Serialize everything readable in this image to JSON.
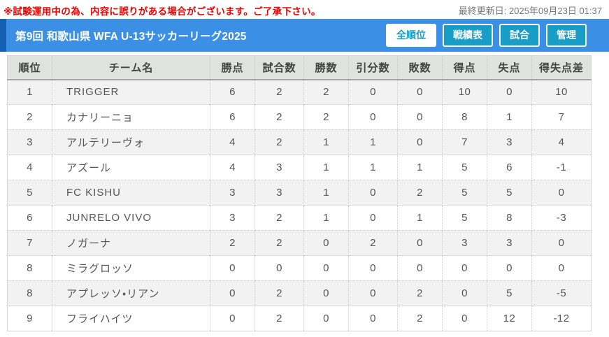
{
  "notice": "※試験運用中の為、内容に誤りがある場合がございます。ご了承下さい。",
  "last_updated": "最終更新日: 2025年09月23日 01:37",
  "header": {
    "title": "第9回 和歌山県 WFA U-13サッカーリーグ2025",
    "buttons": [
      {
        "label": "全順位",
        "active": true
      },
      {
        "label": "戦績表",
        "active": false
      },
      {
        "label": "試合",
        "active": false
      },
      {
        "label": "管理",
        "active": false
      }
    ]
  },
  "colors": {
    "header_bar": "#3b90e6",
    "header_bar_accent": "#1461b4",
    "button_teal": "#189dc7",
    "notice_red": "#ee0000",
    "table_header_bg": "#dee3de",
    "row_alt_bg": "#f2f2f2"
  },
  "standings": {
    "columns": [
      "順位",
      "チーム名",
      "勝点",
      "試合数",
      "勝数",
      "引分数",
      "敗数",
      "得点",
      "失点",
      "得失点差"
    ],
    "rows": [
      {
        "rank": "1",
        "team": "TRIGGER",
        "points": "6",
        "games": "2",
        "wins": "2",
        "draws": "0",
        "losses": "0",
        "goals_for": "10",
        "goals_against": "0",
        "goal_diff": "10"
      },
      {
        "rank": "2",
        "team": "カナリーニョ",
        "points": "6",
        "games": "2",
        "wins": "2",
        "draws": "0",
        "losses": "0",
        "goals_for": "8",
        "goals_against": "1",
        "goal_diff": "7"
      },
      {
        "rank": "3",
        "team": "アルテリーヴォ",
        "points": "4",
        "games": "2",
        "wins": "1",
        "draws": "1",
        "losses": "0",
        "goals_for": "7",
        "goals_against": "3",
        "goal_diff": "4"
      },
      {
        "rank": "4",
        "team": "アズール",
        "points": "4",
        "games": "3",
        "wins": "1",
        "draws": "1",
        "losses": "1",
        "goals_for": "5",
        "goals_against": "6",
        "goal_diff": "-1"
      },
      {
        "rank": "5",
        "team": "FC KISHU",
        "points": "3",
        "games": "3",
        "wins": "1",
        "draws": "0",
        "losses": "2",
        "goals_for": "5",
        "goals_against": "5",
        "goal_diff": "0"
      },
      {
        "rank": "6",
        "team": "JUNRELO VIVO",
        "points": "3",
        "games": "2",
        "wins": "1",
        "draws": "0",
        "losses": "1",
        "goals_for": "5",
        "goals_against": "8",
        "goal_diff": "-3"
      },
      {
        "rank": "7",
        "team": "ノガーナ",
        "points": "2",
        "games": "2",
        "wins": "0",
        "draws": "2",
        "losses": "0",
        "goals_for": "3",
        "goals_against": "3",
        "goal_diff": "0"
      },
      {
        "rank": "8",
        "team": "ミラグロッソ",
        "points": "0",
        "games": "0",
        "wins": "0",
        "draws": "0",
        "losses": "0",
        "goals_for": "0",
        "goals_against": "0",
        "goal_diff": "0"
      },
      {
        "rank": "8",
        "team": "アプレッソ・リアン",
        "points": "0",
        "games": "2",
        "wins": "0",
        "draws": "0",
        "losses": "2",
        "goals_for": "0",
        "goals_against": "5",
        "goal_diff": "-5"
      },
      {
        "rank": "9",
        "team": "フライハイツ",
        "points": "0",
        "games": "2",
        "wins": "0",
        "draws": "0",
        "losses": "2",
        "goals_for": "0",
        "goals_against": "12",
        "goal_diff": "-12"
      }
    ]
  }
}
